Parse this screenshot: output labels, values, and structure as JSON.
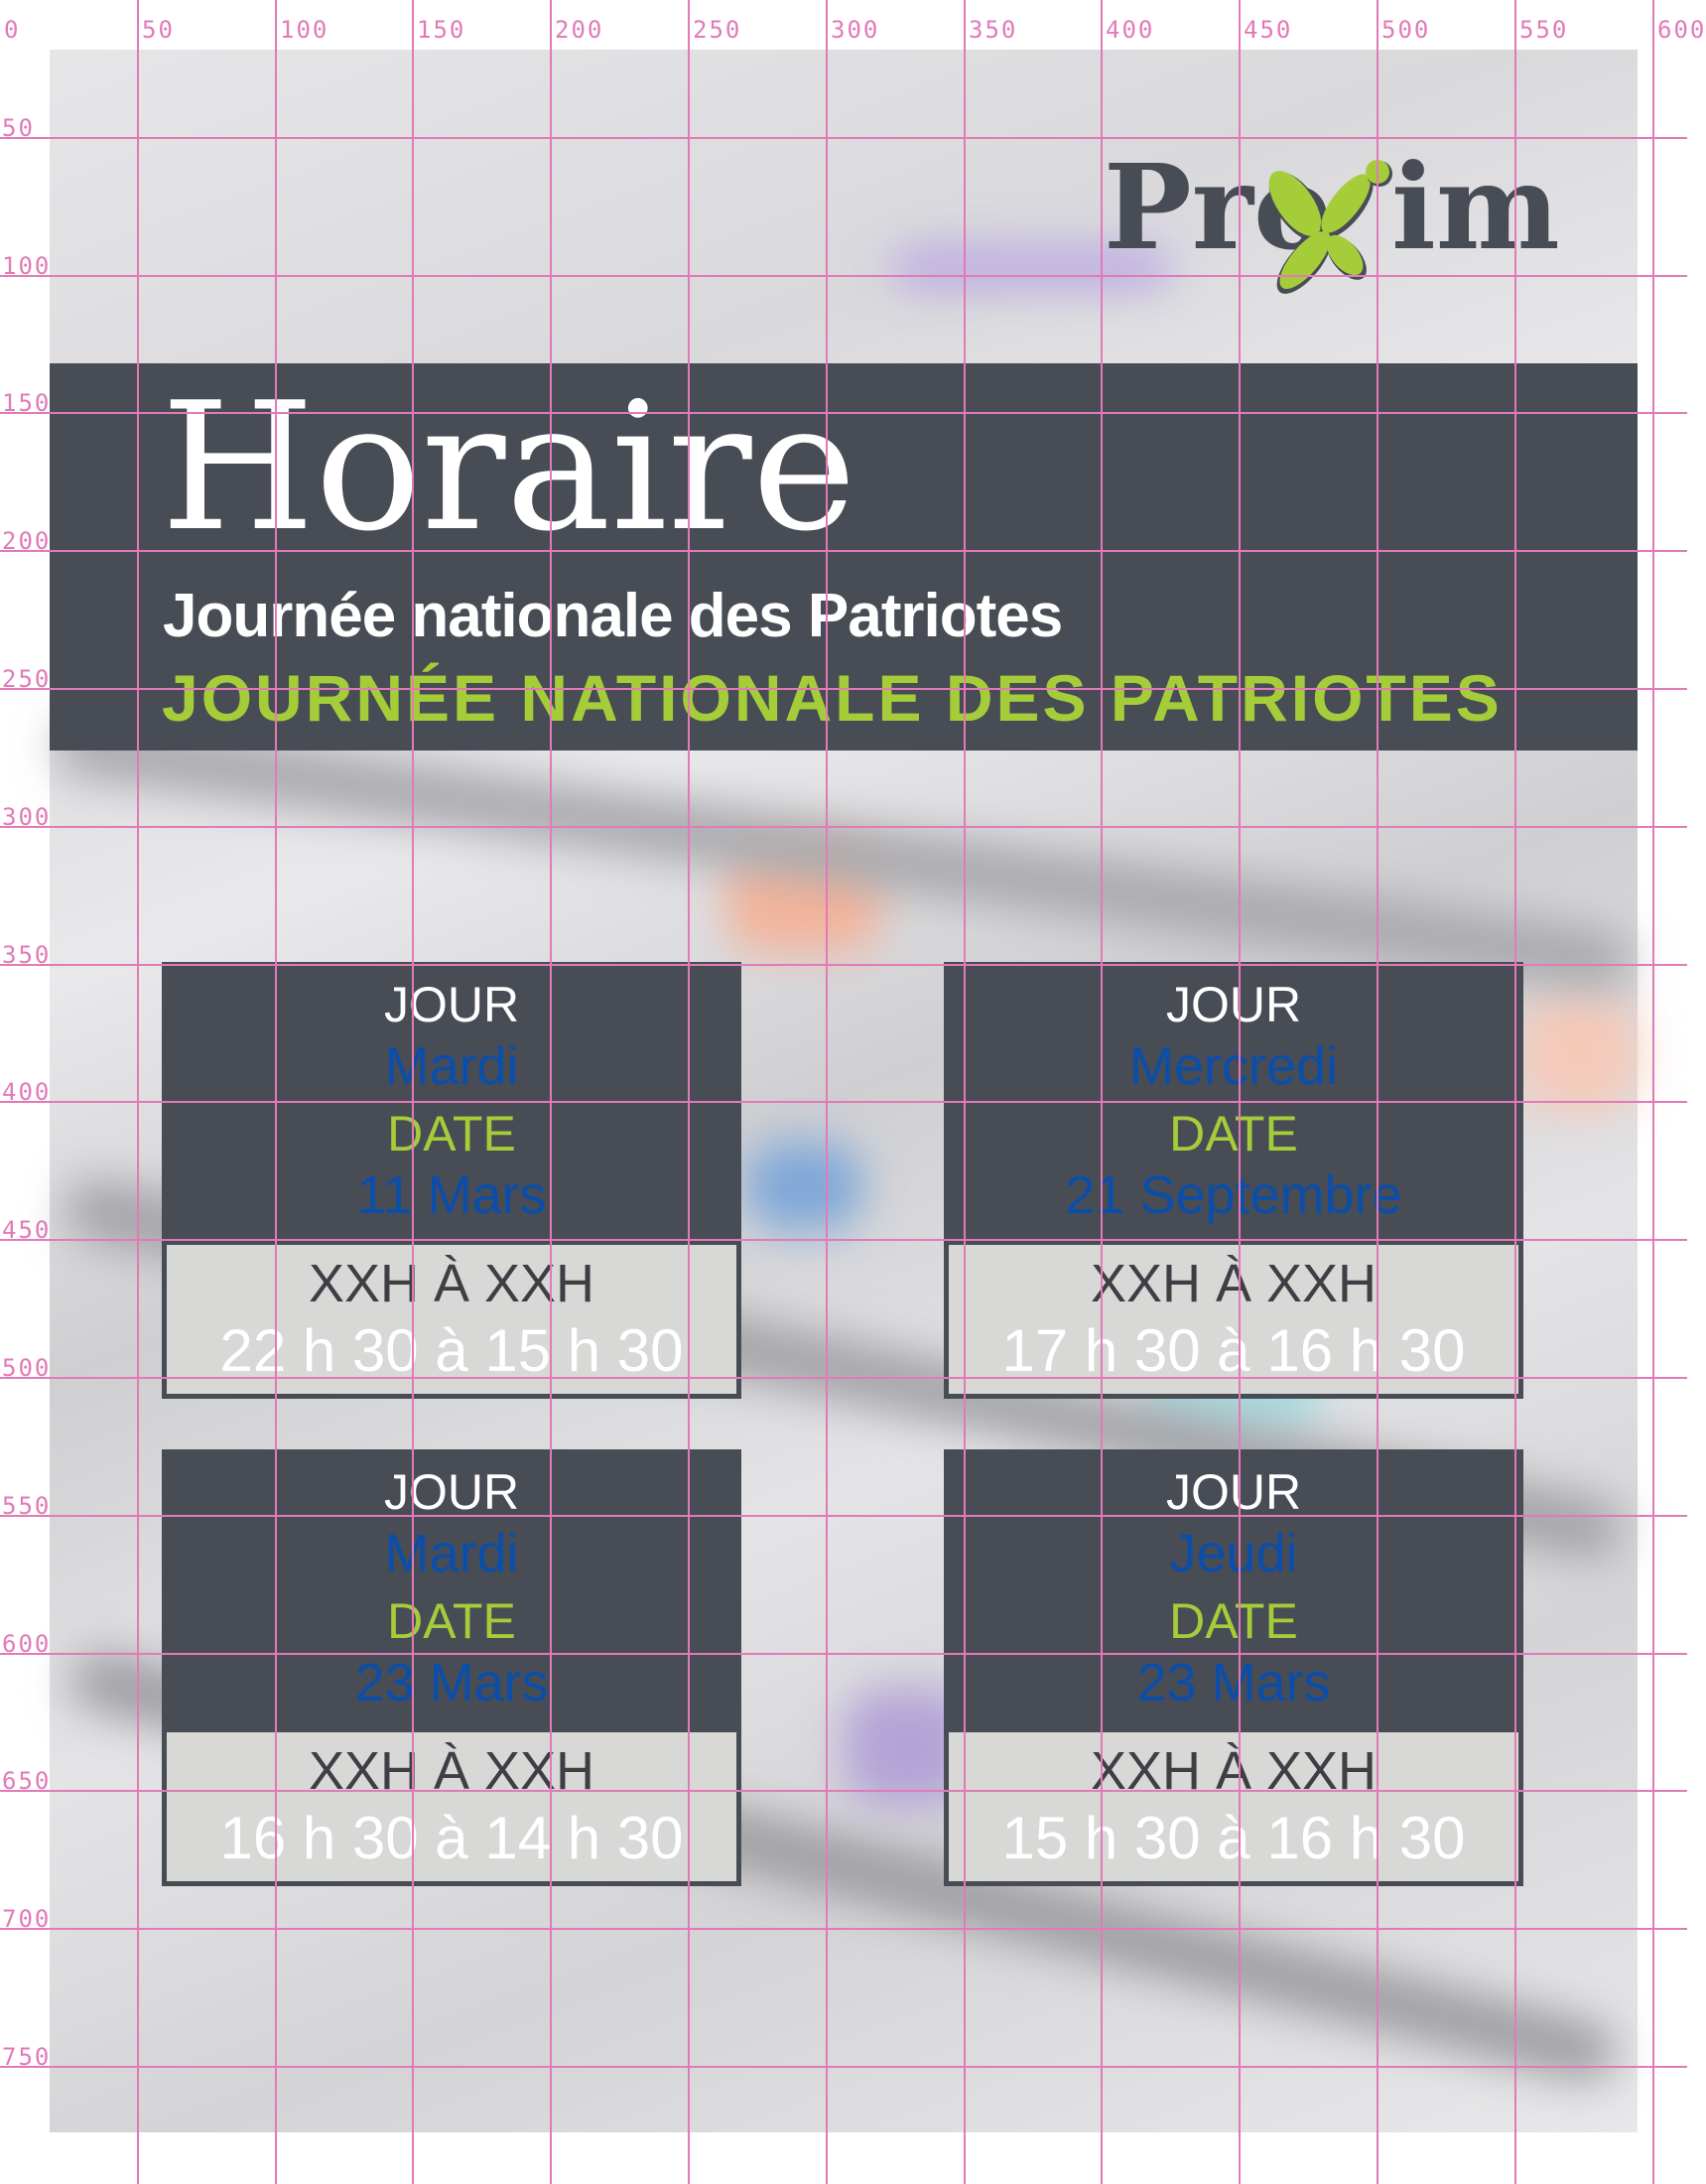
{
  "background": {
    "description_colors": {
      "panel": "#484c55",
      "accent_green": "#a5cd39",
      "overlay_blue": "#0b4eaa",
      "grid": "#e27ab8"
    }
  },
  "logo": {
    "text": "Proxim"
  },
  "header": {
    "title": "Horaire",
    "subtitle_template": "JOURNÉE NATIONALE DES PATRIOTES",
    "subtitle_overlay": "Journée nationale des Patriotes"
  },
  "cards": [
    {
      "jour": "JOUR",
      "date": "DATE",
      "day": "Mardi",
      "day_date": "11 Mars",
      "hours_placeholder": "XXH À XXH",
      "hours": "22 h 30 à 15 h 30"
    },
    {
      "jour": "JOUR",
      "date": "DATE",
      "day": "Mercredi",
      "day_date": "21 Septembre",
      "hours_placeholder": "XXH À XXH",
      "hours": "17 h 30 à 16 h 30"
    },
    {
      "jour": "JOUR",
      "date": "DATE",
      "day": "Mardi",
      "day_date": "23 Mars",
      "hours_placeholder": "XXH À XXH",
      "hours": "16 h 30 à 14 h 30"
    },
    {
      "jour": "JOUR",
      "date": "DATE",
      "day": "Jeudi",
      "day_date": "23 Mars",
      "hours_placeholder": "XXH À XXH",
      "hours": "15 h 30 à 16 h 30"
    }
  ],
  "ruler": {
    "x_labels": [
      "0",
      "50",
      "100",
      "150",
      "200",
      "250",
      "300",
      "350",
      "400",
      "450",
      "500",
      "550",
      "600"
    ],
    "y_labels": [
      "50",
      "100",
      "150",
      "200",
      "250",
      "300",
      "350",
      "400",
      "450",
      "500",
      "550",
      "600",
      "650",
      "700",
      "750"
    ]
  }
}
